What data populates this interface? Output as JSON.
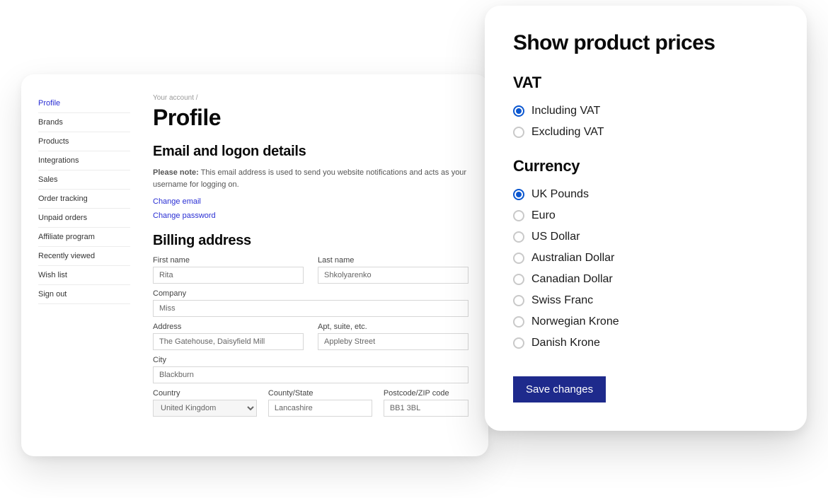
{
  "colors": {
    "accent_link": "#2a2fd4",
    "radio_checked": "#0b57d0",
    "button_bg": "#1e2a8c",
    "border_input": "#d7d7d7",
    "sidebar_divider": "#ececec"
  },
  "back_panel": {
    "breadcrumb": "Your account  /",
    "page_title": "Profile",
    "sidebar": {
      "items": [
        {
          "label": "Profile",
          "active": true
        },
        {
          "label": "Brands",
          "active": false
        },
        {
          "label": "Products",
          "active": false
        },
        {
          "label": "Integrations",
          "active": false
        },
        {
          "label": "Sales",
          "active": false
        },
        {
          "label": "Order tracking",
          "active": false
        },
        {
          "label": "Unpaid orders",
          "active": false
        },
        {
          "label": "Affiliate program",
          "active": false
        },
        {
          "label": "Recently viewed",
          "active": false
        },
        {
          "label": "Wish list",
          "active": false
        },
        {
          "label": "Sign out",
          "active": false
        }
      ]
    },
    "email_section": {
      "title": "Email and logon details",
      "note_bold": "Please note:",
      "note_text": " This email address is used to send you website notifications and acts as your username for logging on.",
      "link_email": "Change email",
      "link_password": "Change password"
    },
    "billing": {
      "title": "Billing address",
      "first_name": {
        "label": "First name",
        "value": "Rita"
      },
      "last_name": {
        "label": "Last name",
        "value": "Shkolyarenko"
      },
      "company": {
        "label": "Company",
        "value": "Miss"
      },
      "address": {
        "label": "Address",
        "value": "The Gatehouse, Daisyfield Mill"
      },
      "apt": {
        "label": "Apt, suite, etc.",
        "value": "Appleby Street"
      },
      "city": {
        "label": "City",
        "value": "Blackburn"
      },
      "country": {
        "label": "Country",
        "value": "United Kingdom"
      },
      "state": {
        "label": "County/State",
        "value": "Lancashire"
      },
      "postcode": {
        "label": "Postcode/ZIP code",
        "value": "BB1 3BL"
      }
    }
  },
  "front_panel": {
    "title": "Show product prices",
    "vat": {
      "title": "VAT",
      "options": [
        {
          "label": "Including VAT",
          "checked": true
        },
        {
          "label": "Excluding VAT",
          "checked": false
        }
      ]
    },
    "currency": {
      "title": "Currency",
      "options": [
        {
          "label": "UK Pounds",
          "checked": true
        },
        {
          "label": "Euro",
          "checked": false
        },
        {
          "label": "US Dollar",
          "checked": false
        },
        {
          "label": "Australian Dollar",
          "checked": false
        },
        {
          "label": "Canadian Dollar",
          "checked": false
        },
        {
          "label": "Swiss Franc",
          "checked": false
        },
        {
          "label": "Norwegian Krone",
          "checked": false
        },
        {
          "label": "Danish Krone",
          "checked": false
        }
      ]
    },
    "save_button": "Save changes"
  }
}
